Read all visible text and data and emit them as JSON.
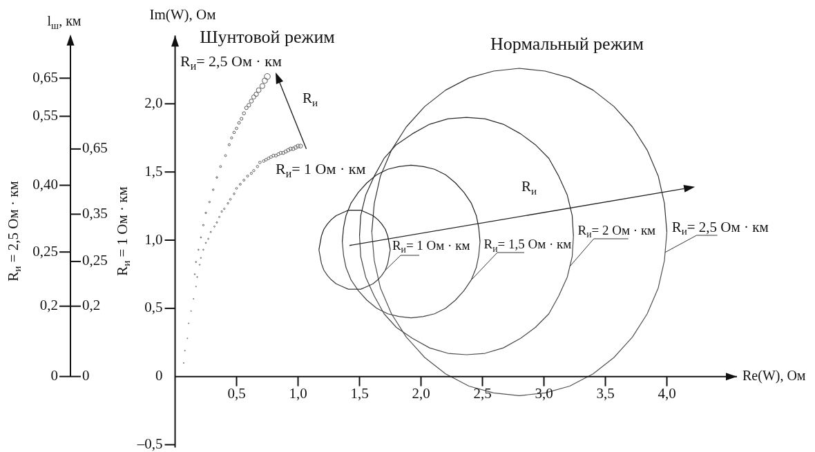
{
  "chart_data": {
    "type": "line",
    "xlabel": "Re(W), Ом",
    "ylabel": "Im(W), Ом",
    "xlim": [
      0,
      4.57
    ],
    "xticks": [
      {
        "value": 0.5,
        "label": "0,5"
      },
      {
        "value": 1,
        "label": "1,0"
      },
      {
        "value": 1.5,
        "label": "1,5"
      },
      {
        "value": 2,
        "label": "2,0"
      },
      {
        "value": 2.5,
        "label": "2,5"
      },
      {
        "value": 3,
        "label": "3,0"
      },
      {
        "value": 3.5,
        "label": "3,5"
      },
      {
        "value": 4,
        "label": "4,0"
      }
    ],
    "ylim": [
      -0.52,
      2.5
    ],
    "yticks": [
      {
        "value": -0.5,
        "label": "–0,5"
      },
      0,
      {
        "value": 0.5,
        "label": "0,5"
      },
      {
        "value": 1,
        "label": "1,0"
      },
      {
        "value": 1.5,
        "label": "1,5"
      },
      {
        "value": 2,
        "label": "2,0"
      }
    ],
    "annotations": [
      "l$_{ш}$, км",
      "R$_{и}$ = 2,5 Ом · км",
      "R$_{и}$ = 1 Ом · км",
      "0,65",
      "0,55",
      "0,40",
      "0,25",
      "0,2",
      "0",
      "0,65",
      "0,35",
      "0,25",
      "0,2",
      "0",
      "Шунтовой режим",
      "Нормальный режим",
      "R$_{и}$",
      "R$_{и}$"
    ],
    "series": [
      {
        "name": "R$_{и}$= 2,5 Ом · км",
        "type": "bubble",
        "marker": "circle",
        "color": "#5a5a5a",
        "x": [
          0.16,
          0.17,
          0.19,
          0.21,
          0.23,
          0.25,
          0.28,
          0.31,
          0.34,
          0.37,
          0.41,
          0.44,
          0.46,
          0.48,
          0.5,
          0.52,
          0.54,
          0.56,
          0.58,
          0.6,
          0.62,
          0.64,
          0.66,
          0.68,
          0.71,
          0.73,
          0.75
        ],
        "values": [
          0.75,
          0.84,
          0.93,
          1.02,
          1.11,
          1.2,
          1.28,
          1.37,
          1.46,
          1.54,
          1.62,
          1.7,
          1.75,
          1.79,
          1.82,
          1.86,
          1.89,
          1.93,
          1.97,
          1.99,
          2.02,
          2.05,
          2.07,
          2.1,
          2.13,
          2.17,
          2.2
        ],
        "sizes": [
          0.03,
          0.04,
          0.04,
          0.04,
          0.07,
          0.07,
          0.07,
          0.08,
          0.08,
          0.11,
          0.11,
          0.14,
          0.14,
          0.18,
          0.18,
          0.22,
          0.24,
          0.29,
          0.34,
          0.39,
          0.45,
          0.49,
          0.55,
          0.63,
          0.7,
          0.82,
          1
        ]
      },
      {
        "name": "R$_{и}$= 1 Ом · км",
        "type": "bubble",
        "marker": "circle",
        "color": "#646464",
        "x": [
          0.07,
          0.08,
          0.1,
          0.11,
          0.13,
          0.15,
          0.17,
          0.18,
          0.2,
          0.21,
          0.23,
          0.25,
          0.27,
          0.29,
          0.32,
          0.34,
          0.36,
          0.38,
          0.4,
          0.43,
          0.45,
          0.48,
          0.5,
          0.53,
          0.56,
          0.59,
          0.62,
          0.64,
          0.67,
          0.69,
          0.72,
          0.74,
          0.76,
          0.78,
          0.8,
          0.82,
          0.84,
          0.86,
          0.88,
          0.9,
          0.92,
          0.94,
          0.96,
          0.98,
          1.0,
          1.02
        ],
        "values": [
          0.1,
          0.19,
          0.28,
          0.39,
          0.48,
          0.57,
          0.66,
          0.73,
          0.82,
          0.87,
          0.93,
          0.98,
          1.01,
          1.06,
          1.1,
          1.13,
          1.17,
          1.21,
          1.23,
          1.27,
          1.3,
          1.34,
          1.38,
          1.41,
          1.44,
          1.47,
          1.49,
          1.51,
          1.54,
          1.57,
          1.58,
          1.59,
          1.6,
          1.61,
          1.62,
          1.62,
          1.63,
          1.64,
          1.64,
          1.65,
          1.66,
          1.67,
          1.67,
          1.68,
          1.69,
          1.69
        ],
        "sizes": [
          0.02,
          0.02,
          0.02,
          0.02,
          0.02,
          0.02,
          0.02,
          0.03,
          0.03,
          0.03,
          0.04,
          0.04,
          0.04,
          0.05,
          0.05,
          0.06,
          0.06,
          0.07,
          0.07,
          0.08,
          0.09,
          0.09,
          0.1,
          0.11,
          0.12,
          0.13,
          0.14,
          0.15,
          0.16,
          0.18,
          0.19,
          0.2,
          0.21,
          0.22,
          0.24,
          0.25,
          0.26,
          0.28,
          0.3,
          0.32,
          0.34,
          0.36,
          0.38,
          0.4,
          0.42,
          0.45
        ]
      },
      {
        "type": "line",
        "marker": "none",
        "color": "#1a1a1a",
        "x": [
          1.17,
          1.19,
          1.21,
          1.24,
          1.27,
          1.31,
          1.36,
          1.41,
          1.46,
          1.51,
          1.56,
          1.61,
          1.65,
          1.68,
          1.71,
          1.73,
          1.75
        ],
        "values": [
          0.93,
          1.03,
          1.08,
          1.12,
          1.15,
          1.18,
          1.2,
          1.22,
          1.22,
          1.22,
          1.2,
          1.18,
          1.15,
          1.12,
          1.08,
          1.03,
          0.93
        ]
      },
      {
        "name": "R$_{и}$= 1 Ом · км",
        "type": "line",
        "marker": "none",
        "color": "#383838",
        "x": [
          1.17,
          1.19,
          1.21,
          1.24,
          1.27,
          1.31,
          1.36,
          1.41,
          1.46,
          1.51,
          1.56,
          1.61,
          1.65,
          1.68,
          1.71,
          1.73,
          1.75
        ],
        "values": [
          0.93,
          0.83,
          0.78,
          0.74,
          0.71,
          0.68,
          0.66,
          0.64,
          0.64,
          0.64,
          0.66,
          0.68,
          0.71,
          0.74,
          0.78,
          0.83,
          0.93
        ]
      },
      {
        "type": "line",
        "marker": "none",
        "color": "#222222",
        "x": [
          1.36,
          1.37,
          1.39,
          1.43,
          1.49,
          1.56,
          1.64,
          1.73,
          1.82,
          1.92,
          2.02,
          2.11,
          2.2,
          2.28,
          2.35,
          2.41,
          2.45,
          2.47,
          2.48
        ],
        "values": [
          0.99,
          1.09,
          1.18,
          1.27,
          1.35,
          1.42,
          1.48,
          1.52,
          1.54,
          1.55,
          1.54,
          1.52,
          1.48,
          1.42,
          1.35,
          1.27,
          1.18,
          1.09,
          0.99
        ]
      },
      {
        "name": "R$_{и}$= 1,5 Ом · км",
        "type": "line",
        "marker": "none",
        "color": "#404040",
        "x": [
          1.36,
          1.37,
          1.39,
          1.43,
          1.49,
          1.56,
          1.64,
          1.73,
          1.82,
          1.92,
          2.02,
          2.11,
          2.2,
          2.28,
          2.35,
          2.41,
          2.45,
          2.47,
          2.48
        ],
        "values": [
          0.99,
          0.89,
          0.8,
          0.71,
          0.63,
          0.56,
          0.5,
          0.46,
          0.44,
          0.43,
          0.44,
          0.46,
          0.5,
          0.56,
          0.63,
          0.71,
          0.8,
          0.89,
          0.99
        ]
      },
      {
        "type": "line",
        "marker": "none",
        "color": "#2a2a2a",
        "x": [
          1.5,
          1.51,
          1.55,
          1.62,
          1.7,
          1.8,
          1.93,
          2.07,
          2.22,
          2.37,
          2.52,
          2.67,
          2.81,
          2.93,
          3.04,
          3.12,
          3.19,
          3.23,
          3.24
        ],
        "values": [
          1.03,
          1.18,
          1.33,
          1.47,
          1.6,
          1.7,
          1.78,
          1.85,
          1.89,
          1.9,
          1.89,
          1.85,
          1.78,
          1.7,
          1.6,
          1.47,
          1.33,
          1.18,
          1.03
        ]
      },
      {
        "name": "R$_{и}$= 2 Ом · км",
        "type": "line",
        "marker": "none",
        "color": "#484848",
        "x": [
          1.5,
          1.51,
          1.55,
          1.62,
          1.7,
          1.8,
          1.93,
          2.07,
          2.22,
          2.37,
          2.52,
          2.67,
          2.81,
          2.93,
          3.04,
          3.12,
          3.19,
          3.23,
          3.24
        ],
        "values": [
          1.03,
          0.88,
          0.73,
          0.59,
          0.46,
          0.36,
          0.28,
          0.21,
          0.17,
          0.16,
          0.17,
          0.21,
          0.28,
          0.36,
          0.46,
          0.59,
          0.73,
          0.88,
          1.03
        ]
      },
      {
        "type": "line",
        "marker": "none",
        "color": "#323232",
        "x": [
          1.6,
          1.62,
          1.67,
          1.76,
          1.88,
          2.03,
          2.2,
          2.39,
          2.59,
          2.8,
          3.01,
          3.21,
          3.4,
          3.57,
          3.72,
          3.84,
          3.93,
          3.98,
          4
        ],
        "values": [
          1.06,
          1.27,
          1.47,
          1.66,
          1.83,
          1.98,
          2.1,
          2.19,
          2.24,
          2.26,
          2.24,
          2.19,
          2.1,
          1.98,
          1.83,
          1.66,
          1.47,
          1.27,
          1.06
        ]
      },
      {
        "name": "R$_{и}$= 2,5 Ом · км",
        "type": "line",
        "marker": "none",
        "color": "#505050",
        "x": [
          1.6,
          1.62,
          1.67,
          1.76,
          1.88,
          2.03,
          2.2,
          2.39,
          2.59,
          2.8,
          3.01,
          3.21,
          3.4,
          3.57,
          3.72,
          3.84,
          3.93,
          3.98,
          4
        ],
        "values": [
          1.06,
          0.85,
          0.65,
          0.46,
          0.29,
          0.14,
          0.02,
          -0.07,
          -0.12,
          -0.14,
          -0.12,
          -0.07,
          0.02,
          0.14,
          0.29,
          0.46,
          0.65,
          0.85,
          1.06
        ]
      }
    ]
  }
}
